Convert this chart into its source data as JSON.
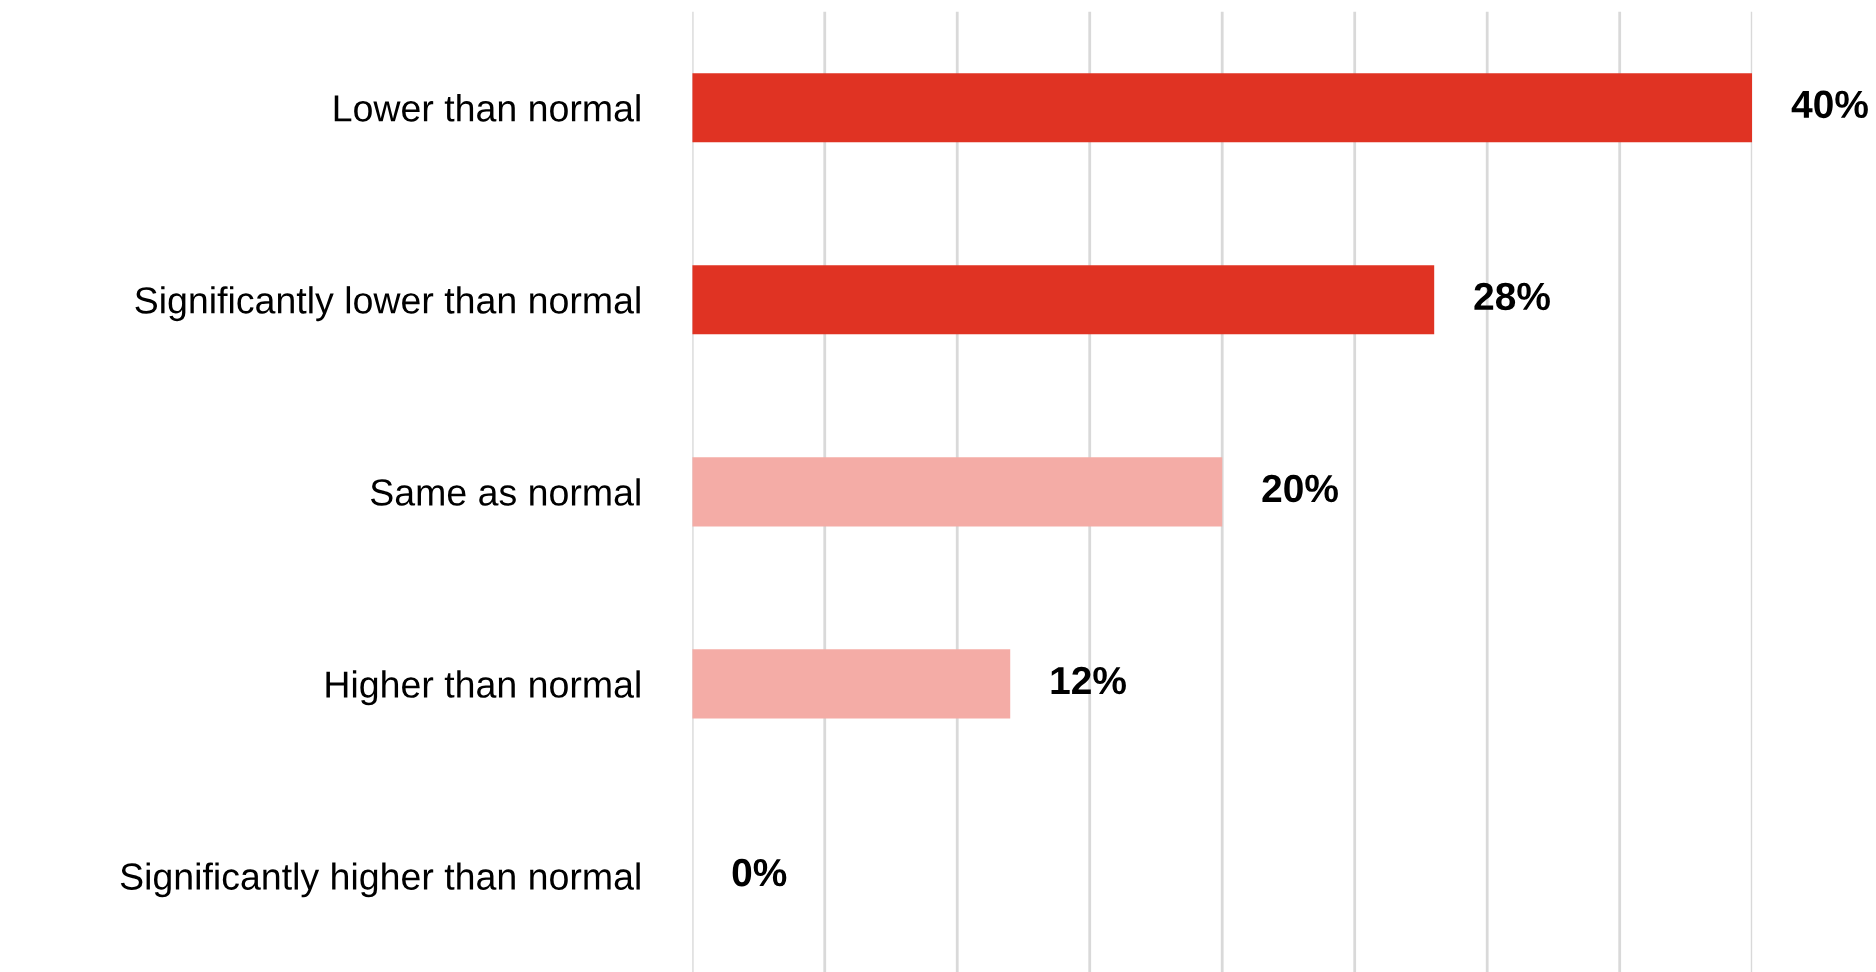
{
  "chart_data": {
    "type": "bar",
    "orientation": "horizontal",
    "categories": [
      "Lower than normal",
      "Significantly lower than normal",
      "Same as normal",
      "Higher than normal",
      "Significantly higher than normal"
    ],
    "values": [
      40,
      28,
      20,
      12,
      0
    ],
    "colors": [
      "#e03323",
      "#e03323",
      "#f4aca6",
      "#f4aca6",
      "#f4aca6"
    ],
    "value_labels": [
      "40%",
      "28%",
      "20%",
      "12%",
      "0%"
    ],
    "xlim": [
      0,
      40
    ],
    "xticks": [
      {
        "value": 0,
        "label": null
      },
      {
        "value": 5,
        "label": null
      },
      {
        "value": 10,
        "label": null
      },
      {
        "value": 15,
        "label": null
      },
      {
        "value": 20,
        "label": null
      },
      {
        "value": 25,
        "label": null
      },
      {
        "value": 30,
        "label": null
      },
      {
        "value": 35,
        "label": null
      },
      {
        "value": 40,
        "label": null
      }
    ],
    "grid": "x",
    "tick_labels": "y",
    "legend": false
  }
}
